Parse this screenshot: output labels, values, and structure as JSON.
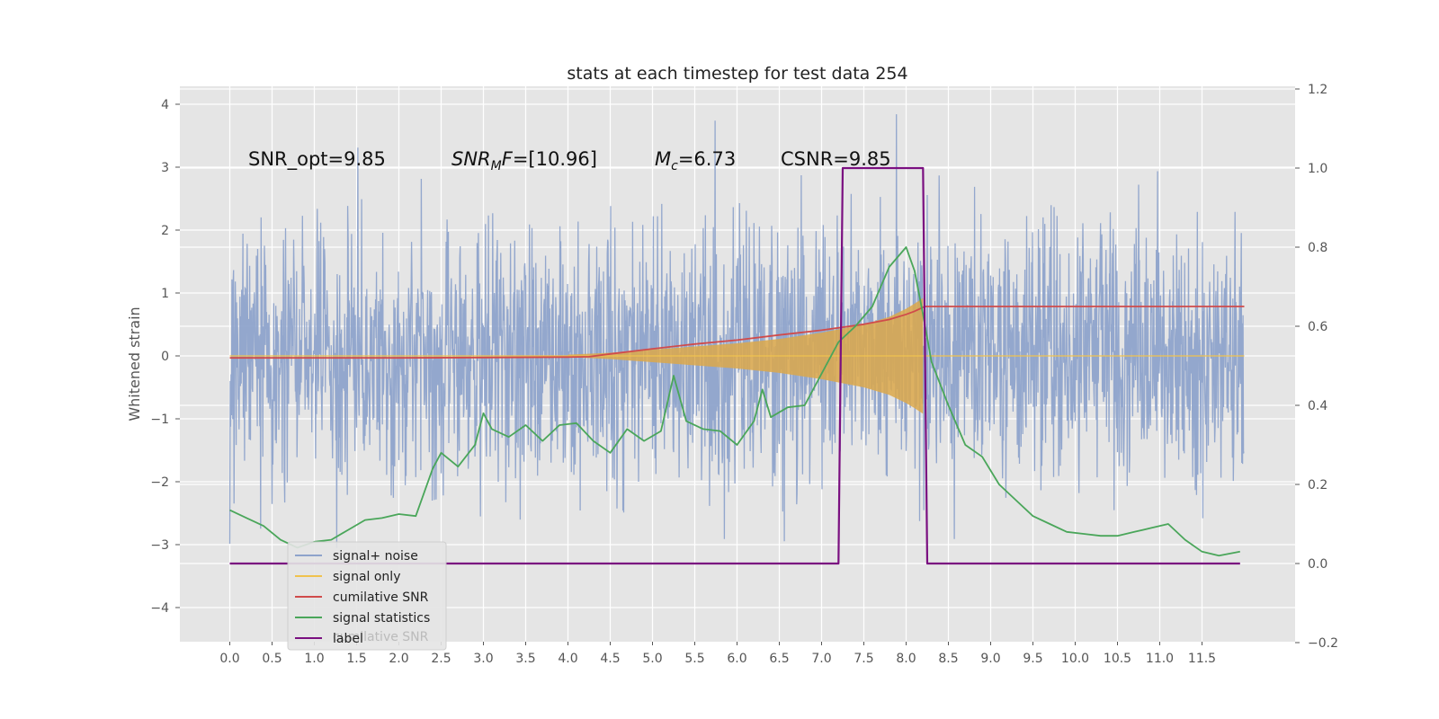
{
  "chart_data": {
    "type": "line",
    "title": "stats at each timestep for test data 254",
    "ylabel": "Whitened strain",
    "xlim": [
      -0.5,
      12.5
    ],
    "ylim": [
      -4.5,
      4.25
    ],
    "y2lim": [
      -0.2,
      1.2
    ],
    "x_ticks": [
      "0.0",
      "0.5",
      "1.0",
      "1.5",
      "2.0",
      "2.5",
      "3.0",
      "3.5",
      "4.0",
      "4.5",
      "5.0",
      "5.5",
      "6.0",
      "6.5",
      "7.0",
      "7.5",
      "8.0",
      "8.5",
      "9.0",
      "9.5",
      "10.0",
      "10.5",
      "11.0",
      "11.5"
    ],
    "y_ticks": [
      "4",
      "3",
      "2",
      "1",
      "0",
      "−1",
      "−2",
      "−3",
      "−4"
    ],
    "y2_ticks": [
      "1.2",
      "1.0",
      "0.8",
      "0.6",
      "0.4",
      "0.2",
      "0.0",
      "−0.2"
    ],
    "grid": true,
    "legend_placement": "lower-left",
    "annotations": {
      "snr_opt": "SNR_opt=9.85",
      "snr_mf_sym": "SNR",
      "snr_mf_sub": "M",
      "snr_mf_mid": "F",
      "snr_mf_rest": "=[10.96]",
      "mc_sym": "M",
      "mc_sub": "c",
      "mc_rest": "=6.73",
      "csnr": "CSNR=9.85"
    },
    "legend": [
      {
        "name": "signal+ noise",
        "color": "#8ea3cb"
      },
      {
        "name": "signal only",
        "color": "#f0c24e"
      },
      {
        "name": "cumilative SNR",
        "color": "#d04b4b"
      },
      {
        "name": "signal statistics",
        "color": "#4aa65a"
      },
      {
        "name": "label",
        "color": "#7a0f80"
      }
    ],
    "legend_hidden_text": "cumilative SNR",
    "series": [
      {
        "name": "signal+ noise",
        "axis": "left",
        "color": "#8ea3cb",
        "description_envelope": {
          "x": [
            0,
            12
          ],
          "typical_max": 2.3,
          "typical_min": -2.3,
          "peak_max": 3.85,
          "peak_min": -4.1
        }
      },
      {
        "name": "signal only",
        "axis": "left",
        "color": "#e2a94a",
        "x": [
          4.0,
          4.5,
          5.0,
          5.5,
          6.0,
          6.5,
          7.0,
          7.5,
          7.8,
          8.0,
          8.1,
          8.2
        ],
        "envelope": [
          0.02,
          0.05,
          0.1,
          0.15,
          0.2,
          0.27,
          0.37,
          0.5,
          0.62,
          0.75,
          0.83,
          0.92
        ]
      },
      {
        "name": "cumilative SNR",
        "axis": "right",
        "color": "#d04b4b",
        "x": [
          0,
          1,
          2,
          3,
          4,
          4.25,
          4.5,
          5.0,
          5.5,
          6.0,
          6.5,
          7.0,
          7.5,
          7.8,
          8.0,
          8.1,
          8.2,
          8.22,
          12.0
        ],
        "y": [
          0.52,
          0.52,
          0.52,
          0.521,
          0.522,
          0.523,
          0.53,
          0.543,
          0.555,
          0.565,
          0.578,
          0.59,
          0.605,
          0.617,
          0.63,
          0.638,
          0.648,
          0.65,
          0.65
        ]
      },
      {
        "name": "signal statistics",
        "axis": "right",
        "color": "#4aa65a",
        "x": [
          0.0,
          0.2,
          0.4,
          0.6,
          0.8,
          1.0,
          1.2,
          1.4,
          1.6,
          1.8,
          2.0,
          2.2,
          2.4,
          2.5,
          2.7,
          2.9,
          3.0,
          3.1,
          3.3,
          3.5,
          3.7,
          3.9,
          4.1,
          4.3,
          4.5,
          4.7,
          4.9,
          5.1,
          5.25,
          5.4,
          5.6,
          5.8,
          6.0,
          6.2,
          6.3,
          6.4,
          6.6,
          6.8,
          7.0,
          7.2,
          7.4,
          7.6,
          7.8,
          8.0,
          8.1,
          8.2,
          8.3,
          8.5,
          8.7,
          8.9,
          9.1,
          9.3,
          9.5,
          9.7,
          9.9,
          10.1,
          10.3,
          10.5,
          10.7,
          10.9,
          11.1,
          11.3,
          11.5,
          11.7,
          11.95
        ],
        "y": [
          0.135,
          0.115,
          0.095,
          0.06,
          0.04,
          0.055,
          0.06,
          0.085,
          0.11,
          0.115,
          0.125,
          0.12,
          0.24,
          0.28,
          0.245,
          0.3,
          0.38,
          0.34,
          0.32,
          0.35,
          0.31,
          0.35,
          0.355,
          0.31,
          0.28,
          0.34,
          0.31,
          0.335,
          0.475,
          0.36,
          0.34,
          0.335,
          0.3,
          0.36,
          0.44,
          0.37,
          0.395,
          0.4,
          0.48,
          0.56,
          0.6,
          0.65,
          0.75,
          0.8,
          0.74,
          0.63,
          0.51,
          0.4,
          0.3,
          0.27,
          0.2,
          0.16,
          0.12,
          0.1,
          0.08,
          0.075,
          0.07,
          0.07,
          0.08,
          0.09,
          0.1,
          0.06,
          0.03,
          0.02,
          0.03
        ]
      },
      {
        "name": "label",
        "axis": "right",
        "color": "#7a0f80",
        "x": [
          0.0,
          7.2,
          7.25,
          8.2,
          8.25,
          11.95
        ],
        "y": [
          0.0,
          0.0,
          1.0,
          1.0,
          0.0,
          0.0
        ]
      }
    ]
  }
}
